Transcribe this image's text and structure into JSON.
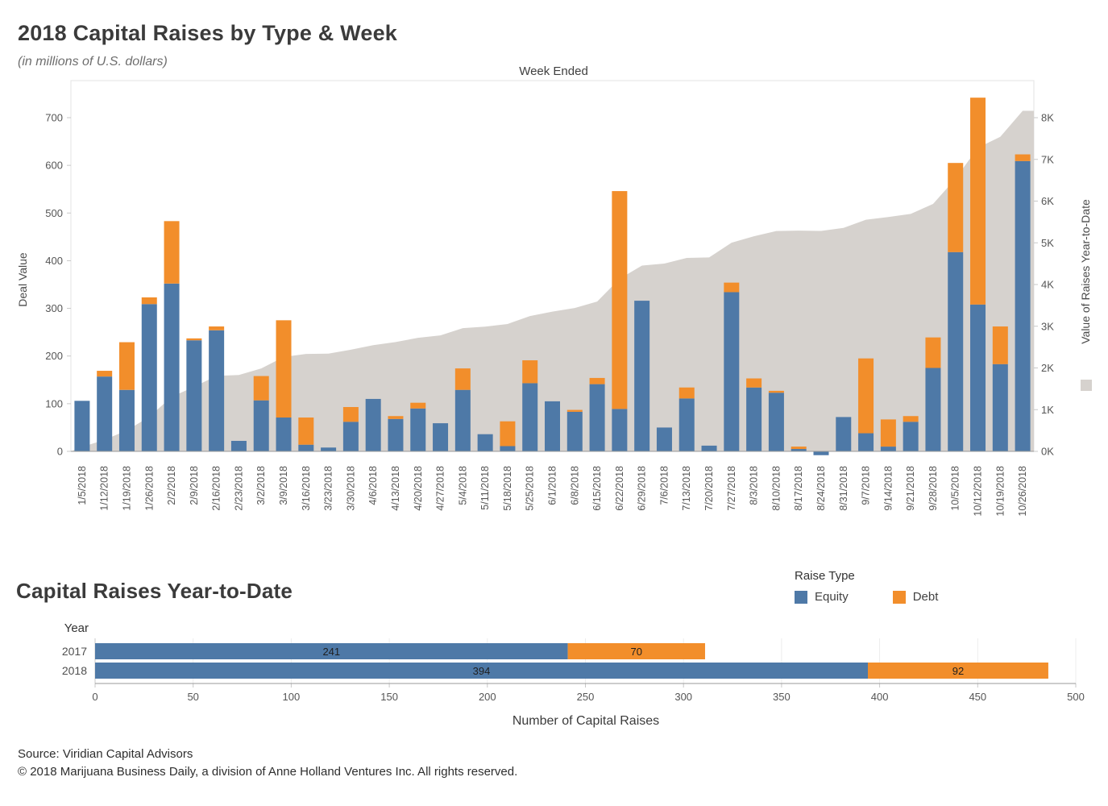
{
  "colors": {
    "equity": "#4e79a7",
    "debt": "#f28e2b",
    "area": "#d6d2ce"
  },
  "legend": {
    "title": "Raise Type",
    "items": [
      {
        "label": "Equity",
        "color": "#4e79a7"
      },
      {
        "label": "Debt",
        "color": "#f28e2b"
      }
    ]
  },
  "footer": {
    "source": "Source: Viridian Capital Advisors",
    "copyright": "© 2018 Marijuana Business Daily, a division of Anne Holland Ventures Inc. All rights reserved."
  },
  "chart_data": [
    {
      "type": "bar",
      "stacked": true,
      "title": "2018 Capital Raises by Type & Week",
      "subtitle": "(in millions of U.S. dollars)",
      "x_axis_title": "Week Ended",
      "ylabel_left": "Deal Value",
      "ylabel_right": "Value of Raises Year-to-Date",
      "ylim_left": [
        0,
        700
      ],
      "yticks_left": [
        0,
        100,
        200,
        300,
        400,
        500,
        600,
        700
      ],
      "ylim_right": [
        0,
        8000
      ],
      "yticks_right": [
        "0K",
        "1K",
        "2K",
        "3K",
        "4K",
        "5K",
        "6K",
        "7K",
        "8K"
      ],
      "overlay_area": {
        "name": "Value of Raises Year-to-Date",
        "derived": "running total of Equity + Debt"
      },
      "categories": [
        "1/5/2018",
        "1/12/2018",
        "1/19/2018",
        "1/26/2018",
        "2/2/2018",
        "2/9/2018",
        "2/16/2018",
        "2/23/2018",
        "3/2/2018",
        "3/9/2018",
        "3/16/2018",
        "3/23/2018",
        "3/30/2018",
        "4/6/2018",
        "4/13/2018",
        "4/20/2018",
        "4/27/2018",
        "5/4/2018",
        "5/11/2018",
        "5/18/2018",
        "5/25/2018",
        "6/1/2018",
        "6/8/2018",
        "6/15/2018",
        "6/22/2018",
        "6/29/2018",
        "7/6/2018",
        "7/13/2018",
        "7/20/2018",
        "7/27/2018",
        "8/3/2018",
        "8/10/2018",
        "8/17/2018",
        "8/24/2018",
        "8/31/2018",
        "9/7/2018",
        "9/14/2018",
        "9/21/2018",
        "9/28/2018",
        "10/5/2018",
        "10/12/2018",
        "10/19/2018",
        "10/26/2018"
      ],
      "series": [
        {
          "name": "Equity",
          "values": [
            106,
            157,
            129,
            309,
            352,
            233,
            254,
            22,
            107,
            71,
            14,
            8,
            62,
            110,
            68,
            90,
            59,
            129,
            36,
            11,
            143,
            105,
            83,
            141,
            89,
            316,
            50,
            111,
            12,
            334,
            134,
            123,
            5,
            -8,
            72,
            38,
            10,
            62,
            175,
            418,
            308,
            183,
            609
          ]
        },
        {
          "name": "Debt",
          "values": [
            0,
            12,
            100,
            14,
            131,
            4,
            8,
            0,
            51,
            204,
            57,
            0,
            31,
            0,
            6,
            12,
            0,
            45,
            0,
            52,
            48,
            0,
            4,
            13,
            457,
            0,
            0,
            23,
            0,
            20,
            19,
            4,
            5,
            0,
            0,
            157,
            57,
            12,
            64,
            187,
            434,
            79,
            14
          ]
        }
      ]
    },
    {
      "type": "bar",
      "orientation": "horizontal",
      "stacked": true,
      "title": "Capital Raises Year-to-Date",
      "row_header": "Year",
      "categories": [
        "2017",
        "2018"
      ],
      "series": [
        {
          "name": "Equity",
          "values": [
            241,
            394
          ]
        },
        {
          "name": "Debt",
          "values": [
            70,
            92
          ]
        }
      ],
      "xlabel": "Number of Capital Raises",
      "xlim": [
        0,
        500
      ],
      "xticks": [
        0,
        50,
        100,
        150,
        200,
        250,
        300,
        350,
        400,
        450,
        500
      ]
    }
  ]
}
